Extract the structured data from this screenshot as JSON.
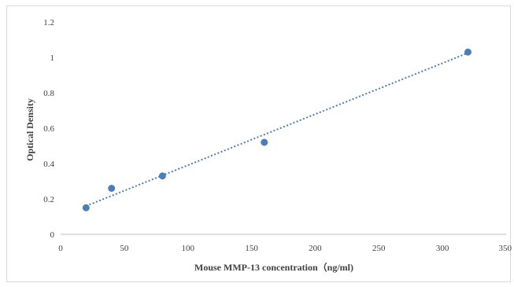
{
  "chart_data": {
    "type": "scatter",
    "title": "",
    "xlabel": "Mouse  MMP-13 concentration（ng/ml)",
    "ylabel": "Optical Density",
    "xlim": [
      0,
      350
    ],
    "ylim": [
      0,
      1.2
    ],
    "x_ticks": [
      "0",
      "50",
      "100",
      "150",
      "200",
      "250",
      "300",
      "350"
    ],
    "y_ticks": [
      "0",
      "0.2",
      "0.4",
      "0.6",
      "0.8",
      "1",
      "1.2"
    ],
    "grid": false,
    "legend": "none",
    "series": [
      {
        "points": [
          {
            "x": 20,
            "y": 0.15
          },
          {
            "x": 40,
            "y": 0.26
          },
          {
            "x": 80,
            "y": 0.33
          },
          {
            "x": 160,
            "y": 0.52
          },
          {
            "x": 320,
            "y": 1.03
          }
        ],
        "color": "#4a7ebb"
      }
    ],
    "trendline": {
      "style": "dotted",
      "x_range": [
        20,
        320
      ],
      "y_range": [
        0.16,
        1.025
      ],
      "color": "#4a7ebb"
    }
  }
}
